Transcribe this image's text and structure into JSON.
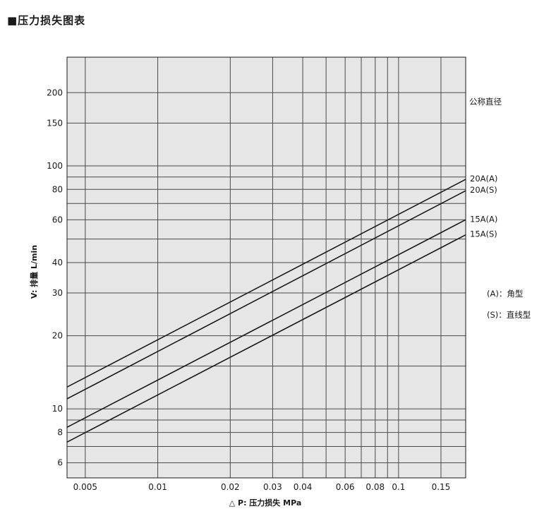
{
  "title": "■压力损失图表",
  "size_label": "公称直径",
  "legend_notes": [
    "(A)：角型",
    "(S)：直线型"
  ],
  "chart_data": {
    "type": "line",
    "title": "■压力损失图表",
    "xlabel": "△ P: 压力损失 MPa",
    "ylabel": "V: 排量 L/min",
    "xscale": "log",
    "yscale": "log",
    "xlim": [
      0.0042,
      0.19
    ],
    "ylim": [
      5.2,
      280
    ],
    "grid": true,
    "background": "#e6e6e6",
    "line_color": "#1a1a1a",
    "x_ticks": [
      0.005,
      0.01,
      0.02,
      0.03,
      0.04,
      0.06,
      0.08,
      0.1,
      0.15
    ],
    "x_tick_labels": [
      "0.005",
      "0.01",
      "0.02",
      "0.03",
      "0.04",
      "0.06",
      "0.08",
      "0.1",
      "0.15"
    ],
    "x_grid": [
      0.005,
      0.01,
      0.02,
      0.03,
      0.04,
      0.05,
      0.06,
      0.07,
      0.08,
      0.09,
      0.1,
      0.15
    ],
    "y_ticks": [
      6,
      8,
      10,
      20,
      30,
      40,
      60,
      80,
      100,
      150,
      200
    ],
    "y_tick_labels": [
      "6",
      "8",
      "10",
      "20",
      "30",
      "40",
      "60",
      "80",
      "100",
      "150",
      "200"
    ],
    "y_grid": [
      6,
      7,
      8,
      9,
      10,
      15,
      20,
      30,
      40,
      50,
      60,
      70,
      80,
      90,
      100,
      150,
      200
    ],
    "legend_position": "right",
    "series": [
      {
        "name": "20A(A)",
        "x": [
          0.0042,
          0.19
        ],
        "y": [
          12.3,
          88
        ]
      },
      {
        "name": "20A(S)",
        "x": [
          0.0042,
          0.19
        ],
        "y": [
          11.0,
          79
        ]
      },
      {
        "name": "15A(A)",
        "x": [
          0.0042,
          0.19
        ],
        "y": [
          8.4,
          60
        ]
      },
      {
        "name": "15A(S)",
        "x": [
          0.0042,
          0.19
        ],
        "y": [
          7.3,
          52
        ]
      }
    ]
  }
}
